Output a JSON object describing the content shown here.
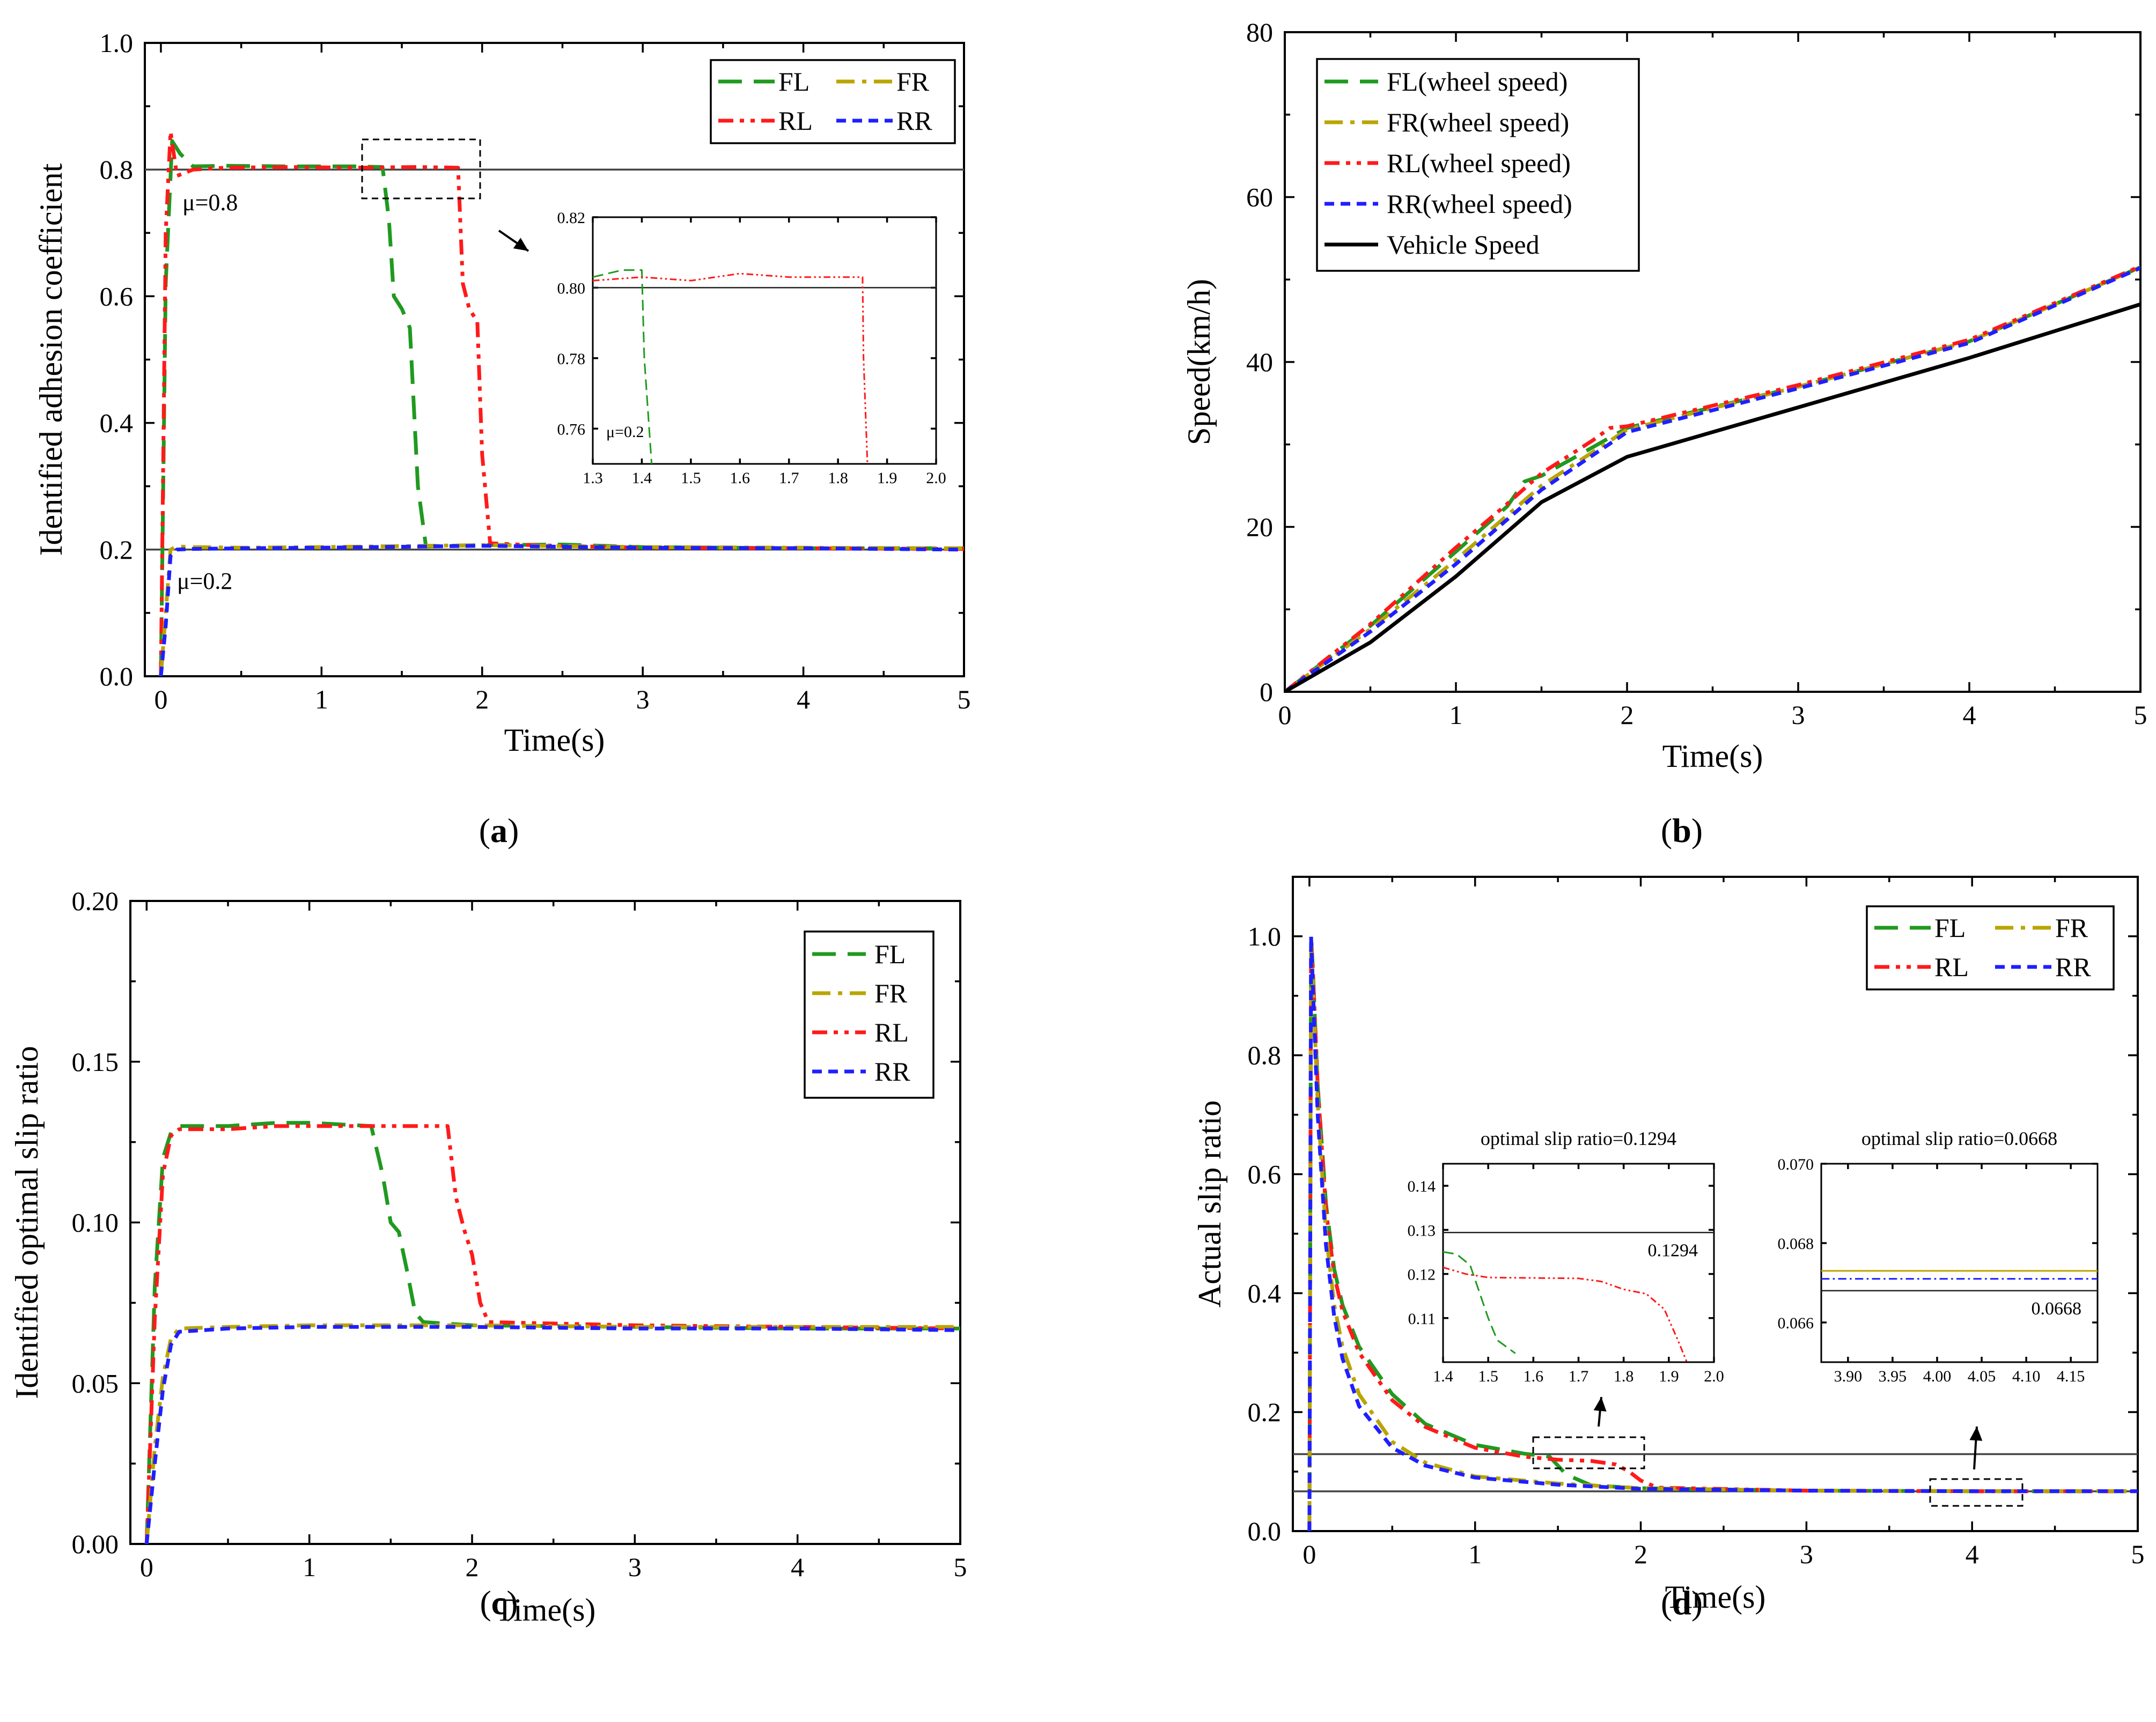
{
  "colors": {
    "FL": "#1f9a1f",
    "FR": "#b9a500",
    "RL": "#ff1a1a",
    "RR": "#1f1fff",
    "vehicle": "#000000",
    "ref": "#444444"
  },
  "chart_data": [
    {
      "id": "a",
      "type": "line",
      "panel_label": "a",
      "xlabel": "Time(s)",
      "ylabel": "Identified adhesion coefficient",
      "xlim": [
        -0.1,
        5
      ],
      "ylim": [
        0,
        1.0
      ],
      "xticks": [
        0,
        1,
        2,
        3,
        4,
        5
      ],
      "xtick_labels": [
        "0",
        "1",
        "2",
        "3",
        "4",
        "5"
      ],
      "yticks": [
        0,
        0.2,
        0.4,
        0.6,
        0.8,
        1.0
      ],
      "ytick_labels": [
        "0.0",
        "0.2",
        "0.4",
        "0.6",
        "0.8",
        "1.0"
      ],
      "legend": [
        [
          "FL",
          "FR"
        ],
        [
          "RL",
          "RR"
        ]
      ],
      "reference_lines": [
        {
          "y": 0.8,
          "label": "μ=0.8"
        },
        {
          "y": 0.2,
          "label": "μ=0.2"
        }
      ],
      "series": [
        {
          "name": "FL",
          "style": "dash",
          "x": [
            0,
            0.03,
            0.07,
            0.12,
            0.2,
            0.4,
            0.8,
            1.2,
            1.38,
            1.42,
            1.45,
            1.5,
            1.55,
            1.6,
            1.65,
            2.0,
            2.5,
            3.0,
            4.0,
            5.0
          ],
          "y": [
            0,
            0.62,
            0.845,
            0.825,
            0.805,
            0.806,
            0.805,
            0.805,
            0.804,
            0.72,
            0.6,
            0.58,
            0.55,
            0.3,
            0.205,
            0.207,
            0.208,
            0.204,
            0.202,
            0.202
          ]
        },
        {
          "name": "RL",
          "style": "dashdotdot",
          "x": [
            0,
            0.03,
            0.06,
            0.1,
            0.2,
            0.4,
            0.8,
            1.2,
            1.6,
            1.85,
            1.88,
            1.92,
            1.97,
            2.0,
            2.05,
            2.3,
            3.0,
            4.0,
            5.0
          ],
          "y": [
            0,
            0.7,
            0.86,
            0.79,
            0.8,
            0.803,
            0.804,
            0.803,
            0.804,
            0.803,
            0.62,
            0.58,
            0.56,
            0.35,
            0.21,
            0.207,
            0.203,
            0.202,
            0.201
          ]
        },
        {
          "name": "FR",
          "style": "dashdot",
          "x": [
            0,
            0.03,
            0.06,
            0.1,
            0.2,
            0.5,
            1.0,
            2.0,
            3.0,
            4.0,
            5.0
          ],
          "y": [
            0,
            0.1,
            0.2,
            0.205,
            0.204,
            0.203,
            0.204,
            0.207,
            0.204,
            0.203,
            0.202
          ]
        },
        {
          "name": "RR",
          "style": "shortdash",
          "x": [
            0,
            0.03,
            0.06,
            0.1,
            0.2,
            0.5,
            1.0,
            2.0,
            3.0,
            4.0,
            5.0
          ],
          "y": [
            0,
            0.08,
            0.19,
            0.2,
            0.201,
            0.202,
            0.203,
            0.206,
            0.203,
            0.202,
            0.2
          ]
        }
      ],
      "inset": {
        "xlim": [
          1.3,
          2.0
        ],
        "ylim": [
          0.75,
          0.82
        ],
        "xticks": [
          1.3,
          1.4,
          1.5,
          1.6,
          1.7,
          1.8,
          1.9,
          2.0
        ],
        "xtick_labels": [
          "1.3",
          "1.4",
          "1.5",
          "1.6",
          "1.7",
          "1.8",
          "1.9",
          "2.0"
        ],
        "yticks": [
          0.76,
          0.78,
          0.8,
          0.82
        ],
        "ytick_labels": [
          "0.76",
          "0.78",
          "0.80",
          "0.82"
        ],
        "annotation": "μ=0.2",
        "series": [
          {
            "name": "FL",
            "x": [
              1.3,
              1.36,
              1.4,
              1.405,
              1.42
            ],
            "y": [
              0.803,
              0.805,
              0.805,
              0.78,
              0.74
            ]
          },
          {
            "name": "RL",
            "x": [
              1.3,
              1.4,
              1.5,
              1.6,
              1.7,
              1.8,
              1.85,
              1.852,
              1.86
            ],
            "y": [
              0.802,
              0.803,
              0.802,
              0.804,
              0.803,
              0.803,
              0.803,
              0.78,
              0.74
            ]
          }
        ],
        "reference_y": 0.8
      }
    },
    {
      "id": "b",
      "type": "line",
      "panel_label": "b",
      "xlabel": "Time(s)",
      "ylabel": "Speed(km/h)",
      "xlim": [
        0,
        5
      ],
      "ylim": [
        0,
        80
      ],
      "xticks": [
        0,
        1,
        2,
        3,
        4,
        5
      ],
      "xtick_labels": [
        "0",
        "1",
        "2",
        "3",
        "4",
        "5"
      ],
      "yticks": [
        0,
        20,
        40,
        60,
        80
      ],
      "ytick_labels": [
        "0",
        "20",
        "40",
        "60",
        "80"
      ],
      "legend": [
        "FL(wheel speed)",
        "FR(wheel speed)",
        "RL(wheel speed)",
        "RR(wheel speed)",
        "Vehicle Speed"
      ],
      "series": [
        {
          "name": "FL(wheel speed)",
          "style": "dash",
          "x": [
            0,
            0.5,
            1.0,
            1.3,
            1.4,
            1.5,
            1.7,
            2.0,
            3.0,
            4.0,
            5.0
          ],
          "y": [
            0,
            8,
            17,
            22.5,
            25.5,
            26.2,
            28.5,
            32,
            37,
            42.5,
            51.5
          ]
        },
        {
          "name": "FR(wheel speed)",
          "style": "dashdot",
          "x": [
            0,
            0.5,
            1.0,
            1.5,
            2.0,
            3.0,
            4.0,
            5.0
          ],
          "y": [
            0,
            7.6,
            16,
            25,
            31.8,
            37,
            42.5,
            51.5
          ]
        },
        {
          "name": "RL(wheel speed)",
          "style": "dashdotdot",
          "x": [
            0,
            0.5,
            1.0,
            1.3,
            1.5,
            1.8,
            1.9,
            2.0,
            3.0,
            4.0,
            5.0
          ],
          "y": [
            0,
            8.2,
            17.5,
            22.8,
            26.5,
            30.5,
            32,
            32.2,
            37.2,
            42.7,
            51.6
          ]
        },
        {
          "name": "RR(wheel speed)",
          "style": "shortdash",
          "x": [
            0,
            0.5,
            1.0,
            1.5,
            2.0,
            3.0,
            4.0,
            5.0
          ],
          "y": [
            0,
            7.3,
            15.5,
            24.5,
            31.5,
            36.8,
            42.3,
            51.4
          ]
        },
        {
          "name": "Vehicle Speed",
          "style": "solid",
          "x": [
            0,
            0.5,
            1.0,
            1.5,
            2.0,
            3.0,
            4.0,
            5.0
          ],
          "y": [
            0,
            6,
            14,
            23,
            28.5,
            34.5,
            40.5,
            47
          ]
        }
      ]
    },
    {
      "id": "c",
      "type": "line",
      "panel_label": "c",
      "xlabel": "Time(s)",
      "ylabel": "Identified optimal slip ratio",
      "xlim": [
        -0.1,
        5
      ],
      "ylim": [
        0,
        0.2
      ],
      "xticks": [
        0,
        1,
        2,
        3,
        4,
        5
      ],
      "xtick_labels": [
        "0",
        "1",
        "2",
        "3",
        "4",
        "5"
      ],
      "yticks": [
        0,
        0.05,
        0.1,
        0.15,
        0.2
      ],
      "ytick_labels": [
        "0.00",
        "0.05",
        "0.10",
        "0.15",
        "0.20"
      ],
      "legend": [
        "FL",
        "FR",
        "RL",
        "RR"
      ],
      "series": [
        {
          "name": "FL",
          "style": "dash",
          "x": [
            0,
            0.05,
            0.1,
            0.15,
            0.2,
            0.5,
            0.8,
            1.0,
            1.38,
            1.45,
            1.5,
            1.55,
            1.6,
            1.65,
            1.7,
            2.0,
            3.0,
            4.0,
            5.0
          ],
          "y": [
            0,
            0.08,
            0.12,
            0.128,
            0.13,
            0.13,
            0.131,
            0.131,
            0.13,
            0.115,
            0.1,
            0.097,
            0.085,
            0.072,
            0.069,
            0.068,
            0.0675,
            0.067,
            0.067
          ]
        },
        {
          "name": "RL",
          "style": "dashdotdot",
          "x": [
            0,
            0.05,
            0.1,
            0.15,
            0.2,
            0.5,
            0.8,
            1.2,
            1.6,
            1.85,
            1.9,
            1.95,
            2.0,
            2.05,
            2.1,
            3.0,
            4.0,
            5.0
          ],
          "y": [
            0,
            0.07,
            0.115,
            0.127,
            0.129,
            0.129,
            0.13,
            0.13,
            0.13,
            0.13,
            0.108,
            0.098,
            0.09,
            0.075,
            0.069,
            0.068,
            0.0675,
            0.067
          ]
        },
        {
          "name": "FR",
          "style": "dashdot",
          "x": [
            0,
            0.05,
            0.1,
            0.15,
            0.2,
            0.5,
            1.0,
            2.0,
            3.0,
            4.0,
            5.0
          ],
          "y": [
            0,
            0.03,
            0.052,
            0.064,
            0.067,
            0.0675,
            0.068,
            0.068,
            0.0675,
            0.0675,
            0.0675
          ]
        },
        {
          "name": "RR",
          "style": "shortdash",
          "x": [
            0,
            0.05,
            0.1,
            0.15,
            0.2,
            0.5,
            1.0,
            2.0,
            3.0,
            4.0,
            5.0
          ],
          "y": [
            0,
            0.025,
            0.048,
            0.062,
            0.066,
            0.067,
            0.0675,
            0.0675,
            0.067,
            0.067,
            0.0665
          ]
        }
      ]
    },
    {
      "id": "d",
      "type": "line",
      "panel_label": "d",
      "xlabel": "Time(s)",
      "ylabel": "Actual slip ratio",
      "xlim": [
        -0.1,
        5
      ],
      "ylim": [
        0,
        1.1
      ],
      "xticks": [
        0,
        1,
        2,
        3,
        4,
        5
      ],
      "xtick_labels": [
        "0",
        "1",
        "2",
        "3",
        "4",
        "5"
      ],
      "yticks": [
        0,
        0.2,
        0.4,
        0.6,
        0.8,
        1.0
      ],
      "ytick_labels": [
        "0.0",
        "0.2",
        "0.4",
        "0.6",
        "0.8",
        "1.0"
      ],
      "legend": [
        [
          "FL",
          "FR"
        ],
        [
          "RL",
          "RR"
        ]
      ],
      "reference_lines": [
        {
          "y": 0.1294
        },
        {
          "y": 0.0668
        }
      ],
      "series": [
        {
          "name": "FL",
          "style": "dash",
          "x": [
            0,
            0.01,
            0.02,
            0.05,
            0.1,
            0.15,
            0.2,
            0.3,
            0.5,
            0.7,
            1.0,
            1.3,
            1.45,
            1.55,
            1.7,
            2.0,
            3.0,
            4.0,
            5.0
          ],
          "y": [
            0,
            1.0,
            0.95,
            0.75,
            0.55,
            0.44,
            0.38,
            0.31,
            0.23,
            0.18,
            0.145,
            0.13,
            0.125,
            0.095,
            0.077,
            0.072,
            0.068,
            0.067,
            0.067
          ]
        },
        {
          "name": "RL",
          "style": "dashdotdot",
          "x": [
            0,
            0.01,
            0.02,
            0.05,
            0.1,
            0.15,
            0.2,
            0.3,
            0.5,
            0.7,
            1.0,
            1.3,
            1.5,
            1.7,
            1.85,
            1.93,
            2.0,
            2.1,
            3.0,
            4.0,
            5.0
          ],
          "y": [
            0,
            1.0,
            0.95,
            0.75,
            0.54,
            0.43,
            0.37,
            0.3,
            0.22,
            0.175,
            0.14,
            0.125,
            0.12,
            0.118,
            0.112,
            0.1,
            0.085,
            0.073,
            0.068,
            0.067,
            0.067
          ]
        },
        {
          "name": "FR",
          "style": "dashdot",
          "x": [
            0,
            0.01,
            0.02,
            0.05,
            0.1,
            0.15,
            0.2,
            0.3,
            0.5,
            0.7,
            1.0,
            1.5,
            2.0,
            3.0,
            4.0,
            5.0
          ],
          "y": [
            0,
            1.0,
            0.93,
            0.72,
            0.5,
            0.38,
            0.31,
            0.23,
            0.15,
            0.115,
            0.092,
            0.08,
            0.072,
            0.068,
            0.0673,
            0.0673
          ]
        },
        {
          "name": "RR",
          "style": "shortdash",
          "x": [
            0,
            0.01,
            0.02,
            0.05,
            0.1,
            0.15,
            0.2,
            0.3,
            0.5,
            0.7,
            1.0,
            1.5,
            2.0,
            3.0,
            4.0,
            5.0
          ],
          "y": [
            0,
            1.0,
            0.92,
            0.7,
            0.48,
            0.36,
            0.29,
            0.21,
            0.14,
            0.11,
            0.09,
            0.078,
            0.071,
            0.068,
            0.0671,
            0.0671
          ]
        }
      ],
      "insets": [
        {
          "title": "optimal slip ratio=0.1294",
          "xlim": [
            1.4,
            2.0
          ],
          "ylim": [
            0.1,
            0.145
          ],
          "xticks": [
            1.4,
            1.5,
            1.6,
            1.7,
            1.8,
            1.9,
            2.0
          ],
          "xtick_labels": [
            "1.4",
            "1.5",
            "1.6",
            "1.7",
            "1.8",
            "1.9",
            "2.0"
          ],
          "yticks": [
            0.11,
            0.12,
            0.13,
            0.14
          ],
          "ytick_labels": [
            "0.11",
            "0.12",
            "0.13",
            "0.14"
          ],
          "reference_y": 0.1294,
          "annotation": "0.1294",
          "series": [
            {
              "name": "FL",
              "x": [
                1.4,
                1.43,
                1.46,
                1.48,
                1.5,
                1.52,
                1.56
              ],
              "y": [
                0.125,
                0.1245,
                0.122,
                0.116,
                0.11,
                0.105,
                0.102
              ]
            },
            {
              "name": "RL",
              "x": [
                1.4,
                1.45,
                1.5,
                1.6,
                1.7,
                1.75,
                1.8,
                1.85,
                1.89,
                1.92,
                1.94
              ],
              "y": [
                0.1215,
                0.12,
                0.1192,
                0.1191,
                0.119,
                0.1183,
                0.1165,
                0.1155,
                0.112,
                0.105,
                0.1
              ]
            }
          ]
        },
        {
          "title": "optimal slip ratio=0.0668",
          "xlim": [
            3.87,
            4.18
          ],
          "ylim": [
            0.065,
            0.07
          ],
          "xticks": [
            3.9,
            3.95,
            4.0,
            4.05,
            4.1,
            4.15
          ],
          "xtick_labels": [
            "3.90",
            "3.95",
            "4.00",
            "4.05",
            "4.10",
            "4.15"
          ],
          "yticks": [
            0.066,
            0.068,
            0.07
          ],
          "ytick_labels": [
            "0.066",
            "0.068",
            "0.070"
          ],
          "reference_y": 0.0668,
          "annotation": "0.0668",
          "series": [
            {
              "name": "FR",
              "x": [
                3.87,
                4.18
              ],
              "y": [
                0.0673,
                0.0673
              ]
            },
            {
              "name": "RR",
              "x": [
                3.87,
                4.18
              ],
              "y": [
                0.0671,
                0.0671
              ]
            }
          ]
        }
      ]
    }
  ]
}
